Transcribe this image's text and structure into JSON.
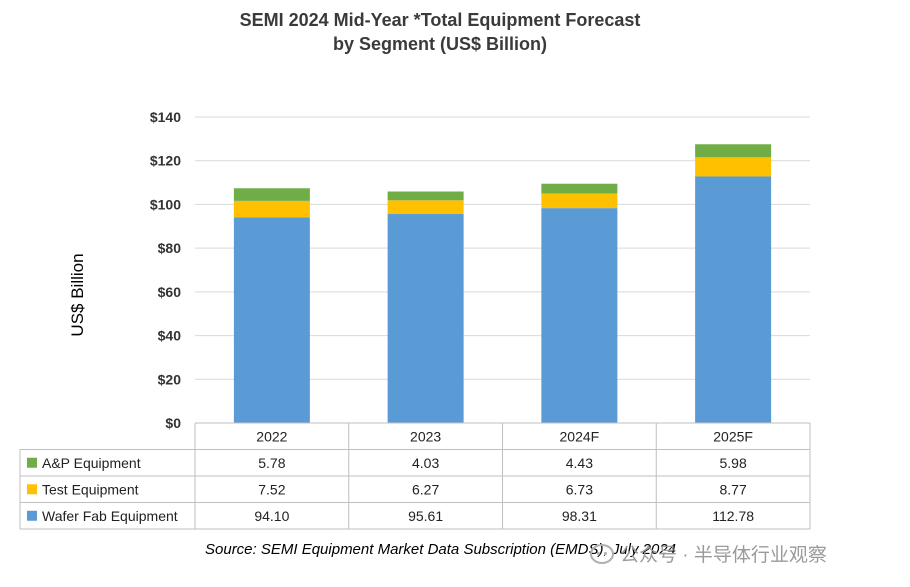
{
  "title_line1": "SEMI 2024 Mid-Year *Total Equipment Forecast",
  "title_line2": "by Segment (US$ Billion)",
  "ylabel": "US$ Billion",
  "source": "Source: SEMI Equipment Market Data Subscription (EMDS), July 2024",
  "watermark": "公众号 · 半导体行业观察",
  "chart_data": {
    "type": "bar",
    "stacked": true,
    "categories": [
      "2022",
      "2023",
      "2024F",
      "2025F"
    ],
    "series": [
      {
        "name": "Wafer Fab Equipment",
        "color": "#5B9BD5",
        "values": [
          94.1,
          95.61,
          98.31,
          112.78
        ],
        "labels": [
          "94.10",
          "95.61",
          "98.31",
          "112.78"
        ]
      },
      {
        "name": "Test Equipment",
        "color": "#FFC000",
        "values": [
          7.52,
          6.27,
          6.73,
          8.77
        ],
        "labels": [
          "7.52",
          "6.27",
          "6.73",
          "8.77"
        ]
      },
      {
        "name": "A&P Equipment",
        "color": "#70AD47",
        "values": [
          5.78,
          4.03,
          4.43,
          5.98
        ],
        "labels": [
          "5.78",
          "4.03",
          "4.43",
          "5.98"
        ]
      }
    ],
    "table_row_order": [
      "A&P Equipment",
      "Test Equipment",
      "Wafer Fab Equipment"
    ],
    "ylim": [
      0,
      140
    ],
    "yticks": [
      0,
      20,
      40,
      60,
      80,
      100,
      120,
      140
    ],
    "ytick_labels": [
      "$0",
      "$20",
      "$40",
      "$60",
      "$80",
      "$100",
      "$120",
      "$140"
    ],
    "grid": true,
    "legend": "data-table"
  }
}
